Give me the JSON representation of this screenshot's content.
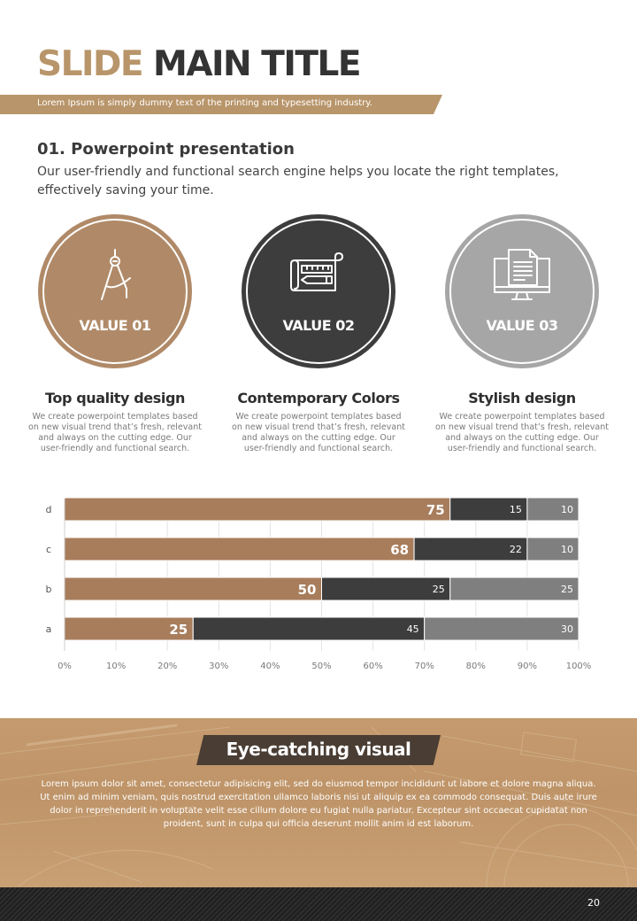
{
  "header": {
    "title_accent": "SLIDE",
    "title_rest": "MAIN TITLE",
    "subtitle": "Lorem Ipsum is simply dummy text of the printing and typesetting industry."
  },
  "section": {
    "heading": "01. Powerpoint presentation",
    "text": "Our user-friendly and functional search engine helps you locate the right templates, effectively saving your time."
  },
  "values": [
    {
      "label": "VALUE 01",
      "icon": "compass-icon",
      "color": "#b08a68"
    },
    {
      "label": "VALUE 02",
      "icon": "blueprint-ruler-icon",
      "color": "#3d3d3d"
    },
    {
      "label": "VALUE 03",
      "icon": "monitor-document-icon",
      "color": "#a6a6a6"
    }
  ],
  "features": [
    {
      "title": "Top quality design",
      "text": "We create powerpoint templates based on new visual trend that’s fresh, relevant and always on the cutting edge. Our user-friendly and functional search."
    },
    {
      "title": "Contemporary Colors",
      "text": "We create powerpoint templates based on new visual trend that’s fresh, relevant and always on the cutting edge. Our user-friendly and functional search."
    },
    {
      "title": "Stylish design",
      "text": "We create powerpoint templates based on new visual trend that’s fresh, relevant and always on the cutting edge. Our user-friendly and functional search."
    }
  ],
  "chart_data": {
    "type": "bar",
    "orientation": "horizontal",
    "stacked": true,
    "categories": [
      "a",
      "b",
      "c",
      "d"
    ],
    "series": [
      {
        "values": [
          25,
          50,
          68,
          75
        ],
        "color": "#a87d5c"
      },
      {
        "values": [
          45,
          25,
          22,
          15
        ],
        "color": "#3d3d3d"
      },
      {
        "values": [
          30,
          25,
          10,
          10
        ],
        "color": "#7f7f7f"
      }
    ],
    "xlim": [
      0,
      100
    ],
    "xticks": [
      "0%",
      "10%",
      "20%",
      "30%",
      "40%",
      "50%",
      "60%",
      "70%",
      "80%",
      "90%",
      "100%"
    ],
    "grid": true,
    "legend": "none"
  },
  "visual": {
    "title": "Eye-catching visual",
    "text": "Lorem ipsum dolor sit amet, consectetur adipisicing elit, sed do eiusmod tempor incididunt ut labore et dolore magna aliqua. Ut enim ad minim veniam, quis nostrud exercitation ullamco laboris nisi ut aliquip ex ea commodo consequat. Duis aute irure dolor in reprehenderit in voluptate velit esse cillum dolore eu fugiat nulla pariatur. Excepteur sint occaecat cupidatat non proident, sunt in culpa qui officia deserunt mollit anim id est laborum.",
    "background_color": "#c49a6e"
  },
  "footer": {
    "page_number": "20"
  }
}
